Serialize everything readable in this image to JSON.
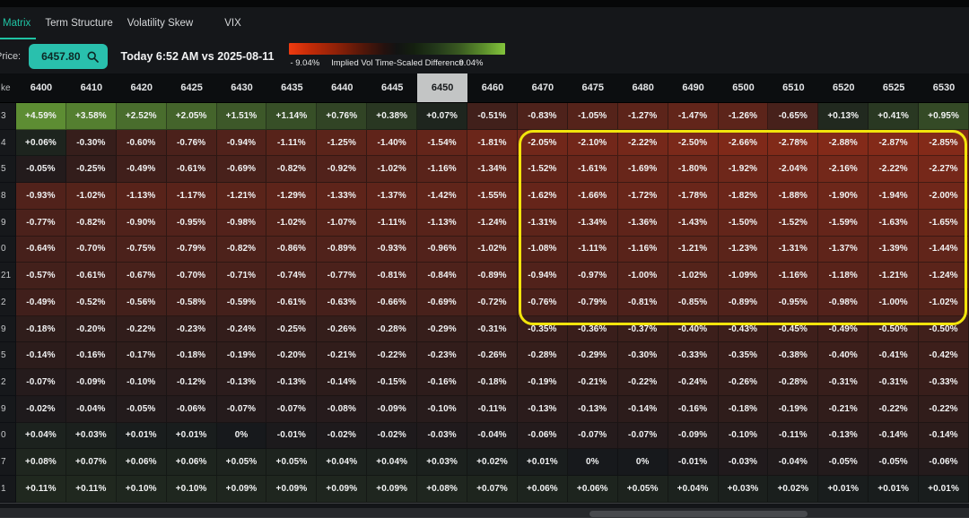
{
  "tabs": {
    "items": [
      {
        "label": "Matrix",
        "active": true
      },
      {
        "label": "Term Structure",
        "active": false
      },
      {
        "label": "Volatility Skew",
        "active": false
      },
      {
        "label": "VIX",
        "active": false
      }
    ]
  },
  "toolbar": {
    "price_label": "Price:",
    "price_value": "6457.80",
    "search_icon": "magnifier-icon",
    "compare_text": "Today 6:52 AM vs 2025-08-11",
    "legend": {
      "min_label": "- 9.04%",
      "title": "Implied Vol Time-Scaled Difference",
      "max_label": "9.04%"
    }
  },
  "matrix": {
    "corner_label": "ke",
    "active_strike": "6450",
    "highlight": {
      "strike_from": "6470",
      "strike_to": "6530",
      "row_from": 2,
      "row_to": 8,
      "color": "#f2e40c"
    }
  },
  "colors": {
    "accent_teal": "#29c0ad",
    "cell_base": "#17191c",
    "negative_max": "#e23917",
    "positive_max": "#7cc23e",
    "scale_range": 9.04,
    "gamma": 0.55,
    "highlight_border": "#f2e40c",
    "active_header_bg": "#c3c5c5"
  },
  "chart_data": {
    "type": "heatmap",
    "title": "Implied Vol Time-Scaled Difference",
    "color_scale": {
      "min": -9.04,
      "max": 9.04,
      "negative_color": "red",
      "positive_color": "green",
      "zero_color": "dark"
    },
    "x_categories": [
      "6400",
      "6410",
      "6420",
      "6425",
      "6430",
      "6435",
      "6440",
      "6445",
      "6450",
      "6460",
      "6470",
      "6475",
      "6480",
      "6490",
      "6500",
      "6510",
      "6520",
      "6525",
      "6530"
    ],
    "row_labels_visible": [
      "3",
      "4",
      "5",
      "8",
      "9",
      "0",
      "21",
      "2",
      "9",
      "5",
      "2",
      "9",
      "0",
      "7",
      "1"
    ],
    "value_format": "signed percent with 2 decimals, zero shown as 0%",
    "values": [
      [
        4.59,
        3.58,
        2.52,
        2.05,
        1.51,
        1.14,
        0.76,
        0.38,
        0.07,
        -0.51,
        -0.83,
        -1.05,
        -1.27,
        -1.47,
        -1.26,
        -0.65,
        0.13,
        0.41,
        0.95
      ],
      [
        0.06,
        -0.3,
        -0.6,
        -0.76,
        -0.94,
        -1.11,
        -1.25,
        -1.4,
        -1.54,
        -1.81,
        -2.05,
        -2.1,
        -2.22,
        -2.5,
        -2.66,
        -2.78,
        -2.88,
        -2.87,
        -2.85
      ],
      [
        -0.05,
        -0.25,
        -0.49,
        -0.61,
        -0.69,
        -0.82,
        -0.92,
        -1.02,
        -1.16,
        -1.34,
        -1.52,
        -1.61,
        -1.69,
        -1.8,
        -1.92,
        -2.04,
        -2.16,
        -2.22,
        -2.27
      ],
      [
        -0.93,
        -1.02,
        -1.13,
        -1.17,
        -1.21,
        -1.29,
        -1.33,
        -1.37,
        -1.42,
        -1.55,
        -1.62,
        -1.66,
        -1.72,
        -1.78,
        -1.82,
        -1.88,
        -1.9,
        -1.94,
        -2.0
      ],
      [
        -0.77,
        -0.82,
        -0.9,
        -0.95,
        -0.98,
        -1.02,
        -1.07,
        -1.11,
        -1.13,
        -1.24,
        -1.31,
        -1.34,
        -1.36,
        -1.43,
        -1.5,
        -1.52,
        -1.59,
        -1.63,
        -1.65
      ],
      [
        -0.64,
        -0.7,
        -0.75,
        -0.79,
        -0.82,
        -0.86,
        -0.89,
        -0.93,
        -0.96,
        -1.02,
        -1.08,
        -1.11,
        -1.16,
        -1.21,
        -1.23,
        -1.31,
        -1.37,
        -1.39,
        -1.44
      ],
      [
        -0.57,
        -0.61,
        -0.67,
        -0.7,
        -0.71,
        -0.74,
        -0.77,
        -0.81,
        -0.84,
        -0.89,
        -0.94,
        -0.97,
        -1.0,
        -1.02,
        -1.09,
        -1.16,
        -1.18,
        -1.21,
        -1.24
      ],
      [
        -0.49,
        -0.52,
        -0.56,
        -0.58,
        -0.59,
        -0.61,
        -0.63,
        -0.66,
        -0.69,
        -0.72,
        -0.76,
        -0.79,
        -0.81,
        -0.85,
        -0.89,
        -0.95,
        -0.98,
        -1.0,
        -1.02
      ],
      [
        -0.18,
        -0.2,
        -0.22,
        -0.23,
        -0.24,
        -0.25,
        -0.26,
        -0.28,
        -0.29,
        -0.31,
        -0.35,
        -0.36,
        -0.37,
        -0.4,
        -0.43,
        -0.45,
        -0.49,
        -0.5,
        -0.5
      ],
      [
        -0.14,
        -0.16,
        -0.17,
        -0.18,
        -0.19,
        -0.2,
        -0.21,
        -0.22,
        -0.23,
        -0.26,
        -0.28,
        -0.29,
        -0.3,
        -0.33,
        -0.35,
        -0.38,
        -0.4,
        -0.41,
        -0.42
      ],
      [
        -0.07,
        -0.09,
        -0.1,
        -0.12,
        -0.13,
        -0.13,
        -0.14,
        -0.15,
        -0.16,
        -0.18,
        -0.19,
        -0.21,
        -0.22,
        -0.24,
        -0.26,
        -0.28,
        -0.31,
        -0.31,
        -0.33
      ],
      [
        -0.02,
        -0.04,
        -0.05,
        -0.06,
        -0.07,
        -0.07,
        -0.08,
        -0.09,
        -0.1,
        -0.11,
        -0.13,
        -0.13,
        -0.14,
        -0.16,
        -0.18,
        -0.19,
        -0.21,
        -0.22,
        -0.22
      ],
      [
        0.04,
        0.03,
        0.01,
        0.01,
        0,
        -0.01,
        -0.02,
        -0.02,
        -0.03,
        -0.04,
        -0.06,
        -0.07,
        -0.07,
        -0.09,
        -0.1,
        -0.11,
        -0.13,
        -0.14,
        -0.14
      ],
      [
        0.08,
        0.07,
        0.06,
        0.06,
        0.05,
        0.05,
        0.04,
        0.04,
        0.03,
        0.02,
        0.01,
        0,
        0,
        -0.01,
        -0.03,
        -0.04,
        -0.05,
        -0.05,
        -0.06
      ],
      [
        0.11,
        0.11,
        0.1,
        0.1,
        0.09,
        0.09,
        0.09,
        0.09,
        0.08,
        0.07,
        0.06,
        0.06,
        0.05,
        0.04,
        0.03,
        0.02,
        0.01,
        0.01,
        0.01
      ]
    ]
  }
}
